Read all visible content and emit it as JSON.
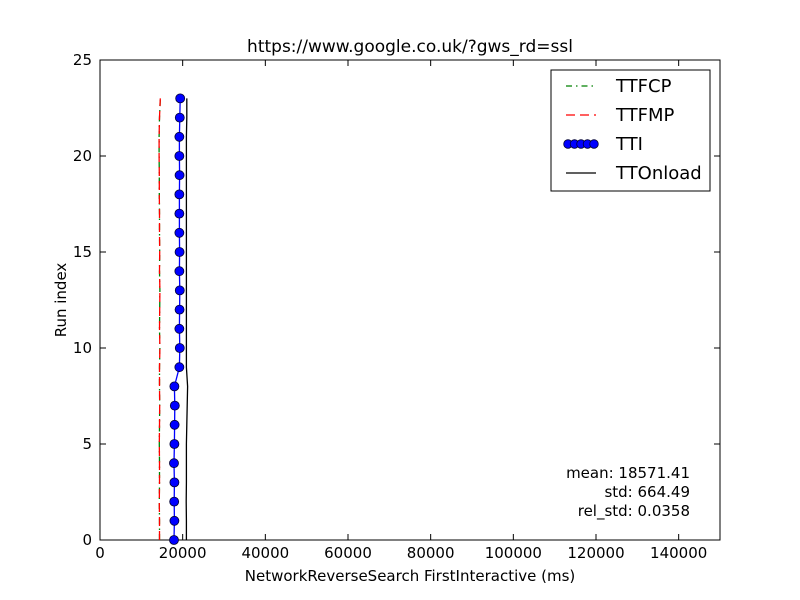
{
  "chart_data": {
    "type": "line",
    "title": "https://www.google.co.uk/?gws_rd=ssl",
    "xlabel": "NetworkReverseSearch FirstInteractive (ms)",
    "ylabel": "Run index",
    "xlim": [
      0,
      150000
    ],
    "ylim": [
      0,
      25
    ],
    "xticks": [
      0,
      20000,
      40000,
      60000,
      80000,
      100000,
      120000,
      140000
    ],
    "yticks": [
      0,
      5,
      10,
      15,
      20,
      25
    ],
    "grid": false,
    "legend_position": "top-right",
    "legend": [
      "TTFCP",
      "TTFMP",
      "TTI",
      "TTOnload"
    ],
    "series": [
      {
        "name": "TTFCP",
        "color": "#008000",
        "style": "dashdot",
        "x": [
          14400,
          14400,
          14350,
          14400,
          14400,
          14350,
          14400,
          14450,
          14400,
          14400,
          14500,
          14400,
          14450,
          14500,
          14400,
          14450,
          14400,
          14400,
          14350,
          14350,
          14300,
          14300,
          14400,
          14600
        ],
        "y": [
          0,
          1,
          2,
          3,
          4,
          5,
          6,
          7,
          8,
          9,
          10,
          11,
          12,
          13,
          14,
          15,
          16,
          17,
          18,
          19,
          20,
          21,
          22,
          23
        ]
      },
      {
        "name": "TTFMP",
        "color": "#ff0000",
        "style": "dashed",
        "x": [
          14400,
          14400,
          14350,
          14400,
          14400,
          14350,
          14400,
          14450,
          14400,
          14400,
          14500,
          14400,
          14450,
          14500,
          14400,
          14450,
          14400,
          14400,
          14350,
          14350,
          14300,
          14300,
          14400,
          14600
        ],
        "y": [
          0,
          1,
          2,
          3,
          4,
          5,
          6,
          7,
          8,
          9,
          10,
          11,
          12,
          13,
          14,
          15,
          16,
          17,
          18,
          19,
          20,
          21,
          22,
          23
        ]
      },
      {
        "name": "TTI",
        "color": "#0000ff",
        "style": "solid-marker",
        "x": [
          17900,
          18000,
          17950,
          18000,
          17900,
          18000,
          18050,
          18100,
          18000,
          19200,
          19300,
          19200,
          19250,
          19300,
          19200,
          19250,
          19200,
          19200,
          19200,
          19250,
          19200,
          19200,
          19300,
          19400
        ],
        "y": [
          0,
          1,
          2,
          3,
          4,
          5,
          6,
          7,
          8,
          9,
          10,
          11,
          12,
          13,
          14,
          15,
          16,
          17,
          18,
          19,
          20,
          21,
          22,
          23
        ]
      },
      {
        "name": "TTOnload",
        "color": "#000000",
        "style": "solid",
        "x": [
          20900,
          20900,
          20850,
          20900,
          20900,
          20900,
          21000,
          21100,
          21200,
          20900,
          20900,
          20900,
          20900,
          20900,
          20900,
          20900,
          20900,
          20900,
          20900,
          20900,
          20900,
          20900,
          21000,
          21000
        ],
        "y": [
          0,
          1,
          2,
          3,
          4,
          5,
          6,
          7,
          8,
          9,
          10,
          11,
          12,
          13,
          14,
          15,
          16,
          17,
          18,
          19,
          20,
          21,
          22,
          23
        ]
      }
    ],
    "annotations": {
      "mean": "mean: 18571.41",
      "std": "std: 664.49",
      "rel_std": "rel_std: 0.0358"
    }
  }
}
